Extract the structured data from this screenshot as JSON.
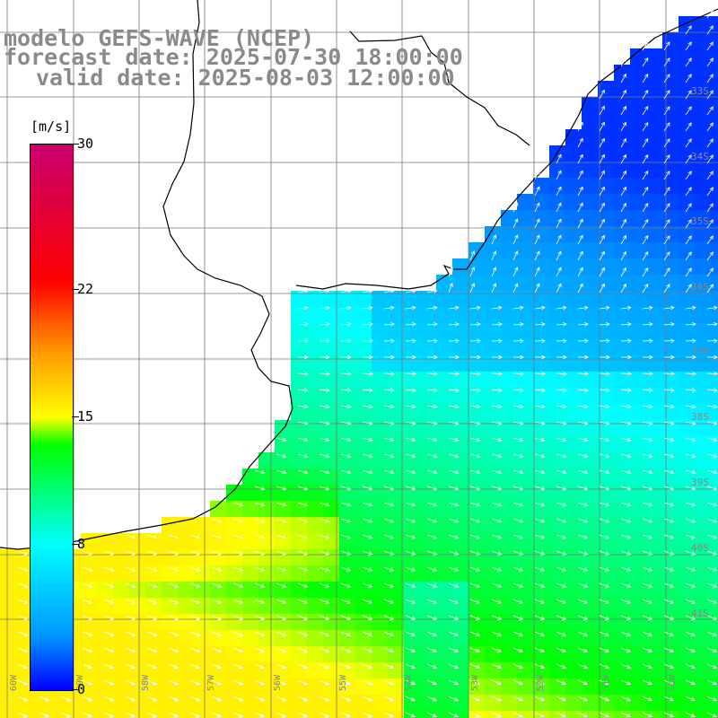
{
  "title": {
    "model": "modelo GEFS-WAVE (NCEP)",
    "forecast": "forecast date: 2025-07-30 18:00:00",
    "valid": "valid date: 2025-08-03 12:00:00"
  },
  "colorbar": {
    "unit": "[m/s]",
    "min": 0,
    "max": 30,
    "tick_labels": [
      "30",
      "22",
      "15",
      "8",
      "0"
    ],
    "tick_values": [
      30,
      22,
      15,
      8,
      0
    ],
    "stops": [
      {
        "v": 0,
        "color": "#0000ff"
      },
      {
        "v": 3,
        "color": "#0096ff"
      },
      {
        "v": 8,
        "color": "#00ffff"
      },
      {
        "v": 13.5,
        "color": "#00ff00"
      },
      {
        "v": 15,
        "color": "#ffff00"
      },
      {
        "v": 18.6,
        "color": "#ff9900"
      },
      {
        "v": 22.5,
        "color": "#ff0000"
      },
      {
        "v": 30,
        "color": "#c8006e"
      }
    ]
  },
  "axes": {
    "lon_labels": [
      "60W",
      "59W",
      "58W",
      "57W",
      "56W",
      "55W",
      "54W",
      "53W",
      "52W",
      "51W",
      "50W"
    ],
    "lat_labels": [
      "33S",
      "34S",
      "35S",
      "36S",
      "37S",
      "38S",
      "39S",
      "40S",
      "41S"
    ]
  }
}
